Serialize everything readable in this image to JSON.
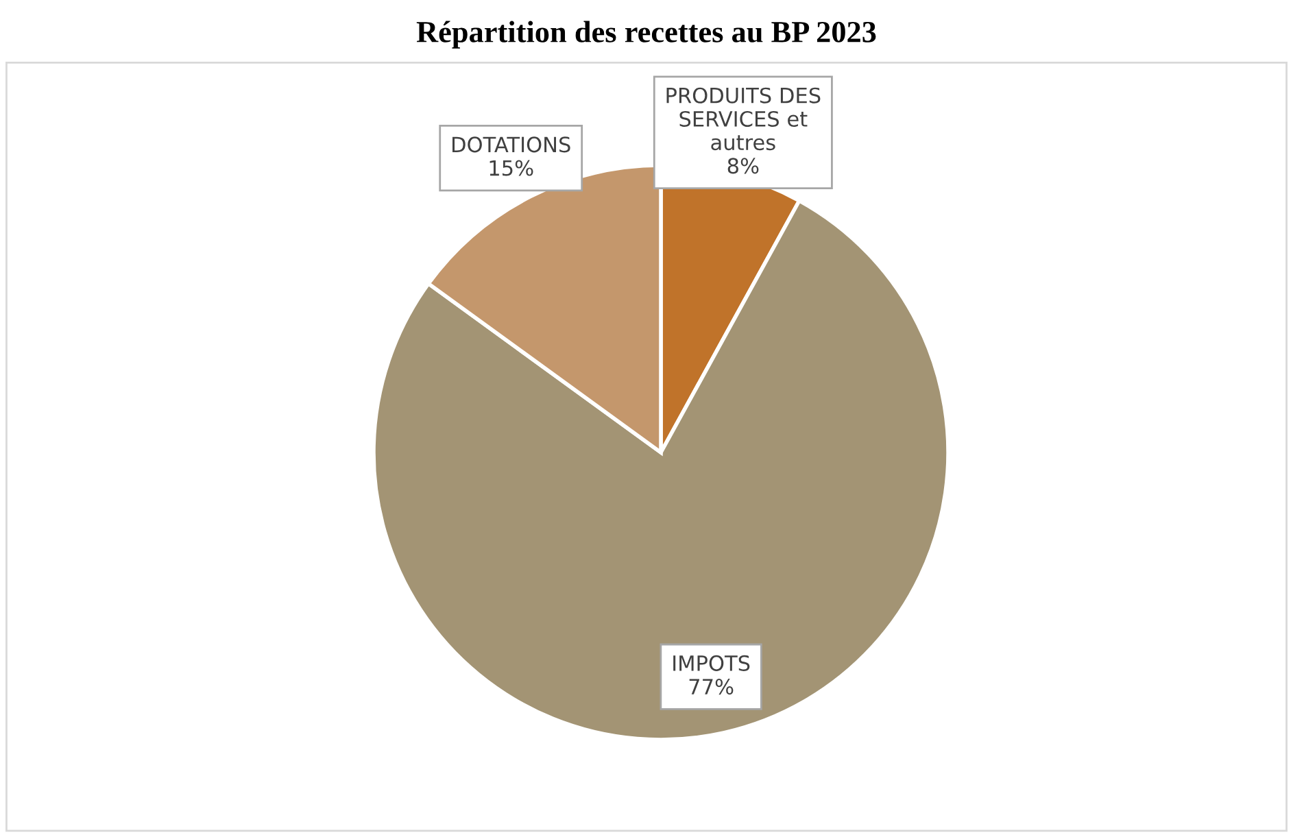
{
  "chart_data": {
    "type": "pie",
    "title": "Répartition des recettes au BP 2023",
    "categories": [
      "PRODUITS DES\nSERVICES et\nautres",
      "IMPOTS",
      "DOTATIONS"
    ],
    "values": [
      8,
      77,
      15
    ],
    "colors": [
      "#c0732a",
      "#a39474",
      "#c4976c"
    ],
    "value_labels": [
      "8%",
      "77%",
      "15%"
    ],
    "legend": false
  }
}
